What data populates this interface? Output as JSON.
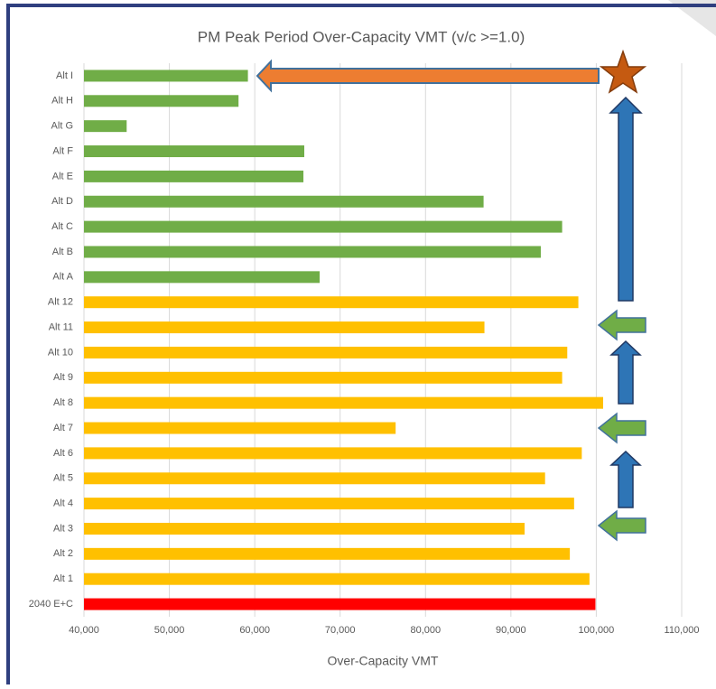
{
  "chart_data": {
    "type": "bar",
    "orientation": "horizontal",
    "title": "PM Peak Period Over-Capacity VMT (v/c >=1.0)",
    "x_label": "Over-Capacity VMT",
    "categories": [
      "Alt I",
      "Alt H",
      "Alt G",
      "Alt F",
      "Alt E",
      "Alt D",
      "Alt C",
      "Alt B",
      "Alt A",
      "Alt 12",
      "Alt 11",
      "Alt 10",
      "Alt 9",
      "Alt 8",
      "Alt 7",
      "Alt 6",
      "Alt 5",
      "Alt 4",
      "Alt 3",
      "Alt 2",
      "Alt 1",
      "2040 E+C"
    ],
    "values": [
      59200,
      58100,
      45000,
      65800,
      65700,
      86800,
      96000,
      93500,
      67600,
      97900,
      86900,
      96600,
      96000,
      100800,
      76500,
      98300,
      94000,
      97400,
      91600,
      96900,
      99200,
      99900
    ],
    "colors": [
      "#70ad47",
      "#70ad47",
      "#70ad47",
      "#70ad47",
      "#70ad47",
      "#70ad47",
      "#70ad47",
      "#70ad47",
      "#70ad47",
      "#ffc000",
      "#ffc000",
      "#ffc000",
      "#ffc000",
      "#ffc000",
      "#ffc000",
      "#ffc000",
      "#ffc000",
      "#ffc000",
      "#ffc000",
      "#ffc000",
      "#ffc000",
      "#ff0000"
    ],
    "xlim": [
      40000,
      110000
    ],
    "xticks": [
      {
        "value": 40000,
        "label": "40,000"
      },
      {
        "value": 50000,
        "label": "50,000"
      },
      {
        "value": 60000,
        "label": "60,000"
      },
      {
        "value": 70000,
        "label": "70,000"
      },
      {
        "value": 80000,
        "label": "80,000"
      },
      {
        "value": 90000,
        "label": "90,000"
      },
      {
        "value": 100000,
        "label": "100,000"
      },
      {
        "value": 110000,
        "label": "110,000"
      }
    ],
    "grid": true
  }
}
